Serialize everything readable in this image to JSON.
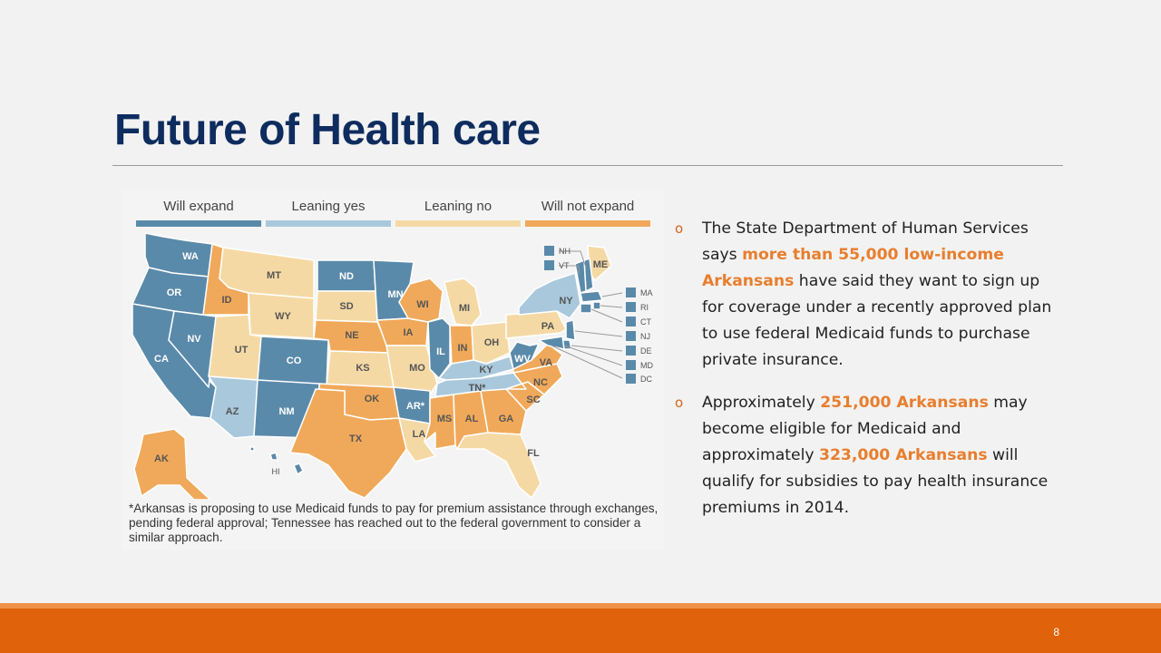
{
  "slide": {
    "title": "Future of Health care",
    "page_number": "8"
  },
  "map": {
    "legend": [
      {
        "label": "Will expand",
        "color": "#5a8aaa"
      },
      {
        "label": "Leaning yes",
        "color": "#a9c8dc"
      },
      {
        "label": "Leaning no",
        "color": "#f5d9a5"
      },
      {
        "label": "Will not expand",
        "color": "#f0a95a"
      }
    ],
    "states": [
      {
        "abbr": "WA",
        "status": "Will expand"
      },
      {
        "abbr": "OR",
        "status": "Will expand"
      },
      {
        "abbr": "CA",
        "status": "Will expand"
      },
      {
        "abbr": "NV",
        "status": "Will expand"
      },
      {
        "abbr": "ID",
        "status": "Will not expand"
      },
      {
        "abbr": "MT",
        "status": "Leaning no"
      },
      {
        "abbr": "WY",
        "status": "Leaning no"
      },
      {
        "abbr": "UT",
        "status": "Leaning no"
      },
      {
        "abbr": "AZ",
        "status": "Leaning yes"
      },
      {
        "abbr": "CO",
        "status": "Will expand"
      },
      {
        "abbr": "NM",
        "status": "Will expand"
      },
      {
        "abbr": "ND",
        "status": "Will expand"
      },
      {
        "abbr": "SD",
        "status": "Leaning no"
      },
      {
        "abbr": "NE",
        "status": "Will not expand"
      },
      {
        "abbr": "KS",
        "status": "Leaning no"
      },
      {
        "abbr": "OK",
        "status": "Will not expand"
      },
      {
        "abbr": "TX",
        "status": "Will not expand"
      },
      {
        "abbr": "MN",
        "status": "Will expand"
      },
      {
        "abbr": "IA",
        "status": "Will not expand"
      },
      {
        "abbr": "MO",
        "status": "Leaning no"
      },
      {
        "abbr": "AR*",
        "status": "Will expand"
      },
      {
        "abbr": "LA",
        "status": "Leaning no"
      },
      {
        "abbr": "WI",
        "status": "Will not expand"
      },
      {
        "abbr": "IL",
        "status": "Will expand"
      },
      {
        "abbr": "MI",
        "status": "Leaning no"
      },
      {
        "abbr": "IN",
        "status": "Will not expand"
      },
      {
        "abbr": "OH",
        "status": "Leaning no"
      },
      {
        "abbr": "KY",
        "status": "Leaning yes"
      },
      {
        "abbr": "TN*",
        "status": "Leaning yes"
      },
      {
        "abbr": "MS",
        "status": "Will not expand"
      },
      {
        "abbr": "AL",
        "status": "Will not expand"
      },
      {
        "abbr": "GA",
        "status": "Will not expand"
      },
      {
        "abbr": "FL",
        "status": "Leaning no"
      },
      {
        "abbr": "SC",
        "status": "Will not expand"
      },
      {
        "abbr": "NC",
        "status": "Will not expand"
      },
      {
        "abbr": "VA",
        "status": "Will not expand"
      },
      {
        "abbr": "WV",
        "status": "Will expand"
      },
      {
        "abbr": "PA",
        "status": "Leaning no"
      },
      {
        "abbr": "NY",
        "status": "Leaning yes"
      },
      {
        "abbr": "ME",
        "status": "Leaning no"
      },
      {
        "abbr": "AK",
        "status": "Will not expand"
      },
      {
        "abbr": "HI",
        "status": "Will expand"
      }
    ],
    "ne_callouts": [
      {
        "abbr": "NH",
        "status": "Will expand"
      },
      {
        "abbr": "VT",
        "status": "Will expand"
      },
      {
        "abbr": "MA",
        "status": "Will expand"
      },
      {
        "abbr": "RI",
        "status": "Will expand"
      },
      {
        "abbr": "CT",
        "status": "Will expand"
      },
      {
        "abbr": "NJ",
        "status": "Will expand"
      },
      {
        "abbr": "DE",
        "status": "Will expand"
      },
      {
        "abbr": "MD",
        "status": "Will expand"
      },
      {
        "abbr": "DC",
        "status": "Will expand"
      }
    ],
    "footnote": "*Arkansas is proposing to use Medicaid funds to pay for premium assistance through exchanges, pending federal approval; Tennessee has reached out to the federal government to consider a similar approach."
  },
  "bullets": [
    {
      "marker": "o",
      "parts": [
        {
          "text": "The State Department of Human Services says ",
          "highlight": false
        },
        {
          "text": "more than 55,000 low-income Arkansans",
          "highlight": true
        },
        {
          "text": " have said they want to sign up for coverage under a recently approved plan to use federal Medicaid funds to purchase private insurance.",
          "highlight": false
        }
      ]
    },
    {
      "marker": "o",
      "parts": [
        {
          "text": "Approximately ",
          "highlight": false
        },
        {
          "text": "251,000 Arkansans",
          "highlight": true
        },
        {
          "text": " may become eligible for Medicaid and approximately ",
          "highlight": false
        },
        {
          "text": "323,000 Arkansans",
          "highlight": true
        },
        {
          "text": " will qualify for subsidies to pay health insurance premiums in 2014.",
          "highlight": false
        }
      ]
    }
  ]
}
